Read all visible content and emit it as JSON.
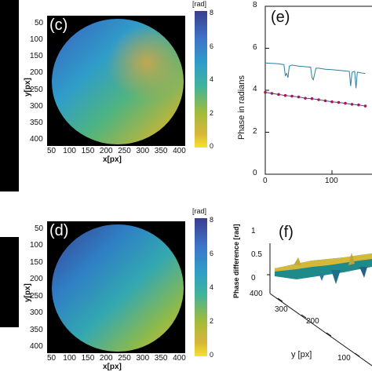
{
  "left_black_strip": true,
  "panel_c": {
    "letter": "(c)",
    "xlabel": "x[px]",
    "ylabel": "y[px]",
    "x_ticks": [
      "50",
      "100",
      "150",
      "200",
      "250",
      "300",
      "350",
      "400"
    ],
    "y_ticks": [
      "50",
      "100",
      "150",
      "200",
      "250",
      "300",
      "350",
      "400"
    ],
    "colorbar_unit": "[rad]",
    "colorbar_ticks": [
      "8",
      "6",
      "4",
      "2",
      "0"
    ]
  },
  "panel_d": {
    "letter": "(d)",
    "xlabel": "x[px]",
    "ylabel": "y[px]",
    "x_ticks": [
      "50",
      "100",
      "150",
      "200",
      "250",
      "300",
      "350",
      "400"
    ],
    "y_ticks": [
      "50",
      "100",
      "150",
      "200",
      "250",
      "300",
      "350",
      "400"
    ],
    "colorbar_unit": "[rad]",
    "colorbar_ticks": [
      "8",
      "6",
      "4",
      "2",
      "0"
    ]
  },
  "panel_e": {
    "letter": "(e)",
    "ylabel": "Phase in radians",
    "y_ticks": [
      "8",
      "6",
      "4",
      "2",
      "0"
    ],
    "x_ticks": [
      "0",
      "100"
    ],
    "chart_data": {
      "type": "line",
      "ylim": [
        0,
        8
      ],
      "xlim": [
        0,
        160
      ],
      "series": [
        {
          "style": "line",
          "color": "#2c7f9e",
          "x": [
            0,
            10,
            20,
            28,
            30,
            32,
            34,
            36,
            40,
            50,
            60,
            68,
            70,
            72,
            76,
            80,
            90,
            100,
            110,
            120,
            126,
            128,
            130,
            132,
            134,
            136,
            138,
            140,
            145,
            150
          ],
          "y": [
            5.3,
            5.28,
            5.26,
            5.22,
            4.7,
            4.8,
            4.6,
            5.15,
            5.2,
            5.15,
            5.12,
            5.1,
            4.6,
            4.5,
            5.05,
            5.05,
            5.0,
            4.98,
            4.95,
            4.92,
            4.9,
            4.2,
            4.85,
            4.88,
            4.9,
            4.1,
            4.86,
            4.85,
            4.82,
            4.8
          ]
        },
        {
          "style": "dots",
          "color": "#b0174a",
          "x": [
            0,
            10,
            20,
            30,
            40,
            50,
            60,
            70,
            80,
            90,
            100,
            110,
            120,
            130,
            140,
            150
          ],
          "y": [
            3.9,
            3.85,
            3.8,
            3.75,
            3.72,
            3.68,
            3.62,
            3.6,
            3.55,
            3.5,
            3.45,
            3.42,
            3.38,
            3.33,
            3.3,
            3.25
          ]
        }
      ]
    }
  },
  "panel_f": {
    "letter": "(f)",
    "zlabel": "Phase difference [rad]",
    "z_ticks": [
      "1",
      "0.5",
      "0"
    ],
    "y_axis_label": "y [px]",
    "y_ticks": [
      "400",
      "300",
      "200",
      "100"
    ]
  }
}
